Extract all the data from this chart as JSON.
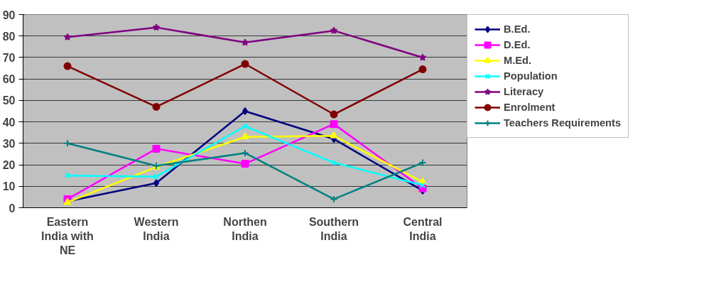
{
  "chart_data": {
    "type": "line",
    "categories": [
      "Eastern India with NE",
      "Western India",
      "Northen India",
      "Southern India",
      "Central India"
    ],
    "series": [
      {
        "name": "B.Ed.",
        "color": "#000080",
        "marker": "diamond",
        "values": [
          3,
          11.5,
          45,
          32,
          8
        ]
      },
      {
        "name": "D.Ed.",
        "color": "#ff00ff",
        "marker": "square",
        "values": [
          4,
          27.5,
          20.5,
          39,
          9
        ]
      },
      {
        "name": "M.Ed.",
        "color": "#ffff00",
        "marker": "triangle",
        "values": [
          2.5,
          19,
          33,
          33.5,
          12
        ]
      },
      {
        "name": "Population",
        "color": "#00ffff",
        "marker": "x",
        "values": [
          15,
          14.5,
          38,
          21,
          10.5
        ]
      },
      {
        "name": "Literacy",
        "color": "#800080",
        "marker": "star",
        "values": [
          79.5,
          84,
          77,
          82.5,
          70
        ]
      },
      {
        "name": "Enrolment",
        "color": "#800000",
        "marker": "circle",
        "values": [
          66,
          47,
          67,
          43.5,
          64.5
        ]
      },
      {
        "name": "Teachers Requirements",
        "color": "#008080",
        "marker": "cross",
        "values": [
          30,
          19.5,
          25.5,
          4,
          21
        ]
      }
    ],
    "ylim": [
      0,
      90
    ],
    "yticks": [
      0,
      10,
      20,
      30,
      40,
      50,
      60,
      70,
      80,
      90
    ],
    "grid": "y",
    "legend": "right",
    "line_style": "solid"
  }
}
